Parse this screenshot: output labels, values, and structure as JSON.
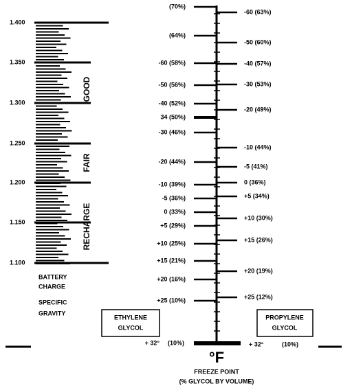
{
  "battery_scale": {
    "labels": [
      "1.400",
      "1.350",
      "1.300",
      "1.250",
      "1.200",
      "1.150",
      "1.100"
    ],
    "zones": [
      "GOOD",
      "FAIR",
      "RECHARGE"
    ],
    "caption": [
      "BATTERY",
      "CHARGE",
      "SPECIFIC",
      "GRAVITY"
    ]
  },
  "ethylene": {
    "name": [
      "ETHYLENE",
      "GLYCOL"
    ],
    "labels": [
      "(70%)",
      "(64%)",
      "-60 (58%)",
      "-50 (56%)",
      "-40 (52%)",
      "34 (50%)",
      "-30 (46%)",
      "-20 (44%)",
      "-10 (39%)",
      "-5 (36%)",
      "0 (33%)",
      "+5 (29%)",
      "+10 (25%)",
      "+15 (21%)",
      "+20 (16%)",
      "+25 (10%)"
    ],
    "bottom": "+ 32°",
    "bottom_pct": "(10%)"
  },
  "propylene": {
    "name": [
      "PROPYLENE",
      "GLYCOL"
    ],
    "labels": [
      "-60 (63%)",
      "-50 (60%)",
      "-40 (57%)",
      "-30 (53%)",
      "-20 (49%)",
      "-10 (44%)",
      "-5 (41%)",
      "0 (36%)",
      "+5 (34%)",
      "+10 (30%)",
      "+15 (26%)",
      "+20 (19%)",
      "+25 (12%)"
    ],
    "bottom": "+ 32°",
    "bottom_pct": "(10%)"
  },
  "unit": "°F",
  "footer": [
    "FREEZE POINT",
    "(% GLYCOL BY VOLUME)"
  ]
}
